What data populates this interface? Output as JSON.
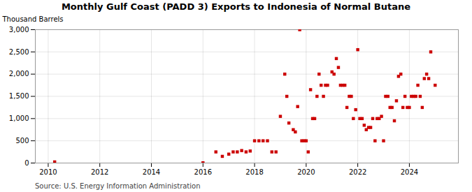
{
  "chart_data": {
    "type": "scatter",
    "title": "Monthly Gulf Coast (PADD 3) Exports to Indonesia of Normal Butane",
    "ylabel": "Thousand Barrels",
    "source": "Source: U.S. Energy Information Administration",
    "color": "#cc0000",
    "marker": "square",
    "grid": true,
    "xlim": [
      2009.5,
      2025.9
    ],
    "xticks": [
      2010,
      2012,
      2014,
      2016,
      2018,
      2020,
      2022,
      2024
    ],
    "ylim": [
      0,
      3000
    ],
    "yticks": [
      0,
      500,
      {
        "value": 1000,
        "label": "1,000"
      },
      {
        "value": 1500,
        "label": "1,500"
      },
      {
        "value": 2000,
        "label": "2,000"
      },
      {
        "value": 2500,
        "label": "2,500"
      },
      {
        "value": 3000,
        "label": "3,000"
      }
    ],
    "x": [
      2010.25,
      2016.0,
      2016.5,
      2016.75,
      2017.0,
      2017.17,
      2017.33,
      2017.5,
      2017.67,
      2017.83,
      2018.0,
      2018.17,
      2018.33,
      2018.5,
      2018.67,
      2018.83,
      2019.0,
      2019.17,
      2019.25,
      2019.33,
      2019.5,
      2019.58,
      2019.67,
      2019.75,
      2019.83,
      2019.92,
      2020.0,
      2020.08,
      2020.17,
      2020.25,
      2020.33,
      2020.42,
      2020.5,
      2020.58,
      2020.67,
      2020.75,
      2020.83,
      2021.0,
      2021.08,
      2021.17,
      2021.25,
      2021.33,
      2021.42,
      2021.5,
      2021.58,
      2021.67,
      2021.75,
      2021.83,
      2021.92,
      2022.0,
      2022.08,
      2022.17,
      2022.25,
      2022.33,
      2022.42,
      2022.5,
      2022.58,
      2022.67,
      2022.75,
      2022.83,
      2022.92,
      2023.0,
      2023.08,
      2023.17,
      2023.25,
      2023.33,
      2023.42,
      2023.5,
      2023.58,
      2023.67,
      2023.75,
      2023.83,
      2023.92,
      2024.0,
      2024.08,
      2024.17,
      2024.25,
      2024.33,
      2024.42,
      2024.5,
      2024.58,
      2024.67,
      2024.75,
      2024.83,
      2025.0
    ],
    "values": [
      25,
      5,
      250,
      150,
      200,
      250,
      250,
      280,
      250,
      270,
      500,
      500,
      500,
      500,
      250,
      250,
      1050,
      2000,
      1500,
      900,
      750,
      700,
      1270,
      3000,
      500,
      500,
      500,
      250,
      1650,
      1000,
      1000,
      1500,
      2000,
      1750,
      1500,
      1750,
      1750,
      2050,
      2000,
      2350,
      2150,
      1750,
      1750,
      1750,
      1250,
      1500,
      1500,
      1000,
      1200,
      2550,
      1000,
      1000,
      850,
      750,
      800,
      800,
      1000,
      500,
      1000,
      1000,
      1050,
      500,
      1500,
      1500,
      1250,
      1250,
      950,
      1400,
      1950,
      2000,
      1250,
      1500,
      1250,
      1250,
      1500,
      1500,
      1500,
      1750,
      1500,
      1250,
      1900,
      2000,
      1900,
      2500,
      1750
    ]
  }
}
